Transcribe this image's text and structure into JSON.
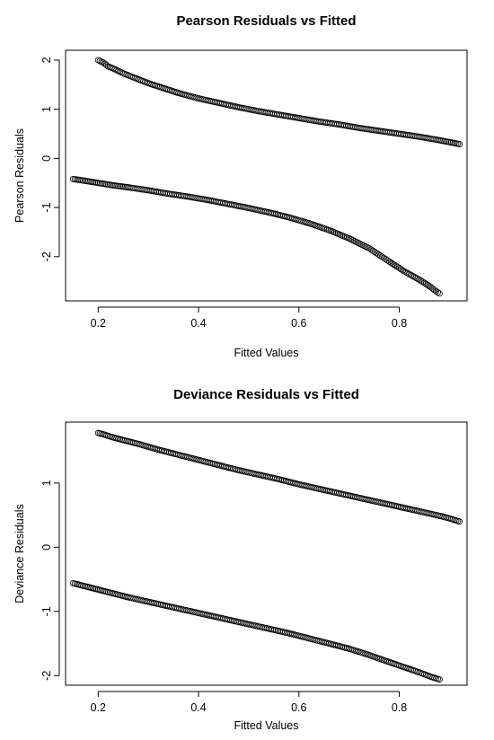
{
  "chart_data": [
    {
      "type": "scatter",
      "title": "Pearson Residuals vs Fitted",
      "xlabel": "Fitted Values",
      "ylabel": "Pearson Residuals",
      "xlim": [
        0.135,
        0.935
      ],
      "ylim": [
        -2.9,
        2.2
      ],
      "xticks": [
        "0.2",
        "0.4",
        "0.6",
        "0.8"
      ],
      "xtick_values": [
        0.2,
        0.4,
        0.6,
        0.8
      ],
      "yticks": [
        "2",
        "1",
        "0",
        "-1",
        "-2"
      ],
      "ytick_values": [
        2,
        1,
        0,
        -1,
        -2
      ],
      "grid": false,
      "series": [
        {
          "x": [
            0.2,
            0.21,
            0.22,
            0.23,
            0.25,
            0.27,
            0.3,
            0.33,
            0.36,
            0.4,
            0.44,
            0.48,
            0.52,
            0.56,
            0.6,
            0.64,
            0.68,
            0.72,
            0.76,
            0.8,
            0.84,
            0.88,
            0.9,
            0.92
          ],
          "y": [
            2.0,
            1.95,
            1.87,
            1.83,
            1.73,
            1.65,
            1.53,
            1.43,
            1.33,
            1.22,
            1.13,
            1.04,
            0.96,
            0.89,
            0.82,
            0.75,
            0.69,
            0.62,
            0.56,
            0.5,
            0.44,
            0.37,
            0.33,
            0.29
          ]
        },
        {
          "x": [
            0.15,
            0.17,
            0.2,
            0.23,
            0.26,
            0.3,
            0.34,
            0.38,
            0.42,
            0.46,
            0.5,
            0.54,
            0.58,
            0.62,
            0.66,
            0.7,
            0.74,
            0.78,
            0.81,
            0.84,
            0.86,
            0.87,
            0.88
          ],
          "y": [
            -0.42,
            -0.45,
            -0.5,
            -0.55,
            -0.59,
            -0.65,
            -0.72,
            -0.78,
            -0.85,
            -0.93,
            -1.01,
            -1.1,
            -1.2,
            -1.32,
            -1.46,
            -1.63,
            -1.83,
            -2.1,
            -2.3,
            -2.47,
            -2.6,
            -2.68,
            -2.75
          ]
        }
      ]
    },
    {
      "type": "scatter",
      "title": "Deviance Residuals vs Fitted",
      "xlabel": "Fitted Values",
      "ylabel": "Deviance Residuals",
      "xlim": [
        0.135,
        0.935
      ],
      "ylim": [
        -2.15,
        1.95
      ],
      "xticks": [
        "0.2",
        "0.4",
        "0.6",
        "0.8"
      ],
      "xtick_values": [
        0.2,
        0.4,
        0.6,
        0.8
      ],
      "yticks": [
        "1",
        "0",
        "-1",
        "-2"
      ],
      "ytick_values": [
        1,
        0,
        -1,
        -2
      ],
      "grid": false,
      "series": [
        {
          "x": [
            0.2,
            0.21,
            0.23,
            0.25,
            0.28,
            0.32,
            0.36,
            0.4,
            0.44,
            0.48,
            0.52,
            0.56,
            0.6,
            0.64,
            0.68,
            0.72,
            0.76,
            0.8,
            0.84,
            0.88,
            0.9,
            0.92
          ],
          "y": [
            1.78,
            1.76,
            1.71,
            1.67,
            1.61,
            1.52,
            1.44,
            1.36,
            1.28,
            1.2,
            1.13,
            1.06,
            0.98,
            0.91,
            0.84,
            0.77,
            0.7,
            0.63,
            0.56,
            0.49,
            0.45,
            0.4
          ]
        },
        {
          "x": [
            0.15,
            0.17,
            0.2,
            0.23,
            0.26,
            0.3,
            0.34,
            0.38,
            0.42,
            0.46,
            0.5,
            0.54,
            0.58,
            0.62,
            0.66,
            0.7,
            0.74,
            0.78,
            0.81,
            0.84,
            0.86,
            0.88
          ],
          "y": [
            -0.56,
            -0.6,
            -0.66,
            -0.72,
            -0.78,
            -0.85,
            -0.92,
            -0.99,
            -1.06,
            -1.13,
            -1.2,
            -1.27,
            -1.34,
            -1.42,
            -1.5,
            -1.58,
            -1.68,
            -1.79,
            -1.87,
            -1.95,
            -2.01,
            -2.06
          ]
        }
      ]
    }
  ]
}
